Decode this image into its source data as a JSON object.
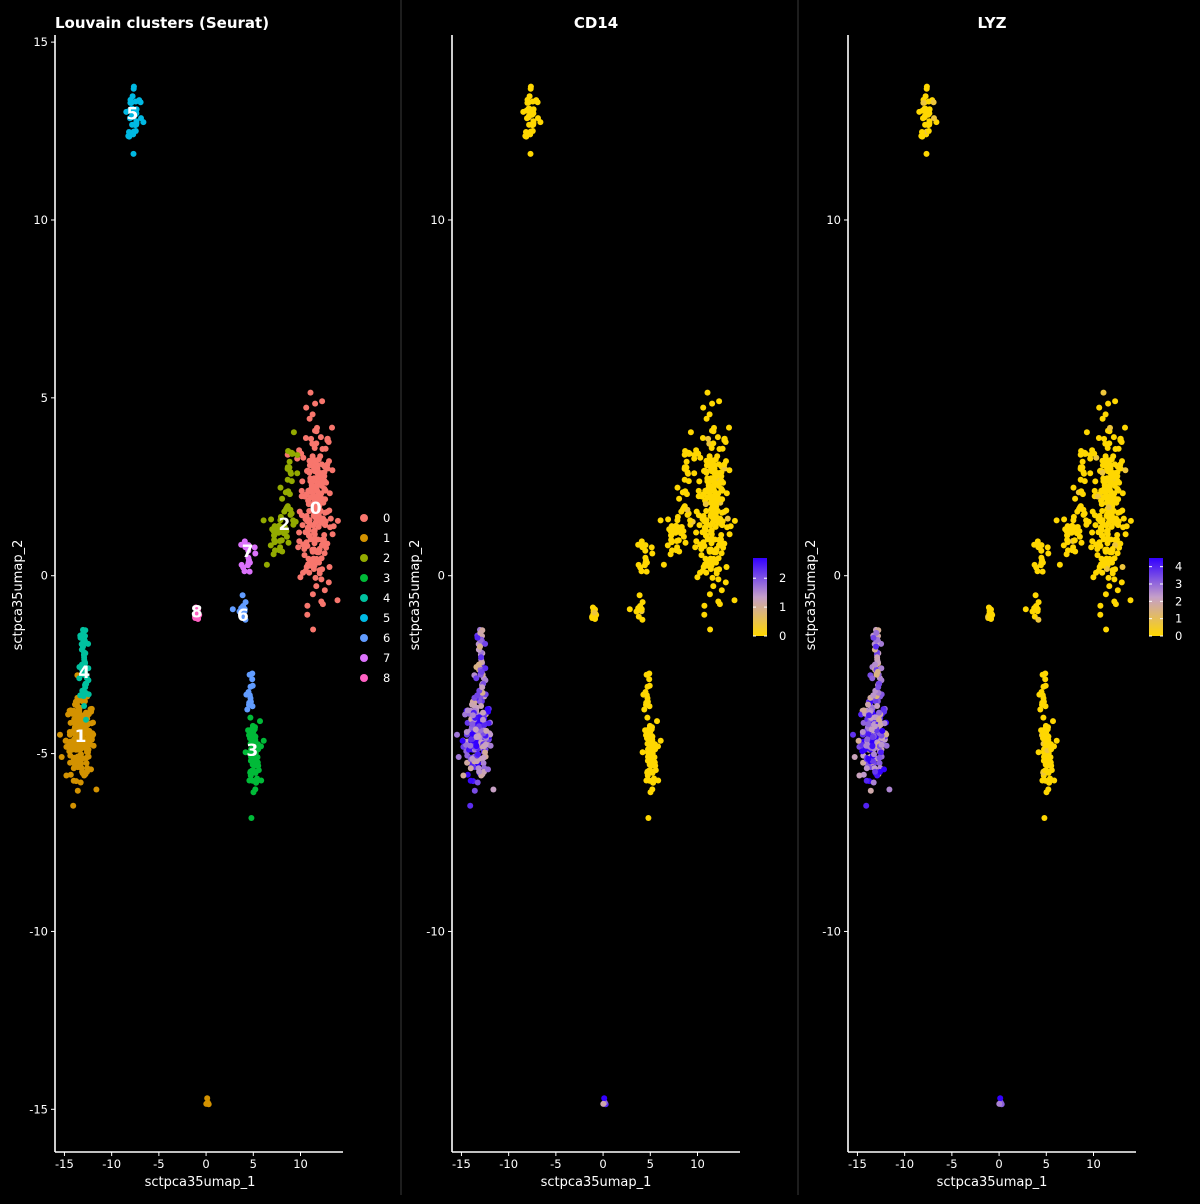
{
  "chart_data": [
    {
      "type": "scatter",
      "title": "Louvain clusters (Seurat)",
      "xlabel": "sctpca35umap_1",
      "ylabel": "sctpca35umap_2",
      "xlim": [
        -16,
        14.5
      ],
      "ylim": [
        -16.2,
        15.2
      ],
      "xticks": [
        -15,
        -10,
        -5,
        0,
        5,
        10
      ],
      "yticks": [
        -15,
        -10,
        -5,
        0,
        5,
        10,
        15
      ],
      "legend_position": "right",
      "legend": [
        "0",
        "1",
        "2",
        "3",
        "4",
        "5",
        "6",
        "7",
        "8"
      ],
      "palette": [
        "#F8766D",
        "#D39200",
        "#93AA00",
        "#00BA38",
        "#00C19F",
        "#00B9E3",
        "#619CFF",
        "#DB72FB",
        "#FF61C3"
      ],
      "clusters": [
        {
          "name": "0",
          "color": "#F8766D",
          "label": [
            11.6,
            1.9
          ],
          "regions": [
            {
              "cx": 11.6,
              "cy": 1.9,
              "sx": 0.85,
              "sy": 1.3,
              "n": 240
            }
          ]
        },
        {
          "name": "1",
          "color": "#D39200",
          "label": [
            -13.3,
            -4.5
          ],
          "regions": [
            {
              "cx": -13.3,
              "cy": -4.6,
              "sx": 0.75,
              "sy": 0.55,
              "n": 200
            },
            {
              "cx": 0.2,
              "cy": -14.75,
              "sx": 0.08,
              "sy": 0.1,
              "n": 4
            }
          ]
        },
        {
          "name": "2",
          "color": "#93AA00",
          "label": [
            8.3,
            1.45
          ],
          "regions": [
            {
              "cx": 7.8,
              "cy": 1.2,
              "sx": 0.6,
              "sy": 0.35,
              "n": 35
            },
            {
              "cx": 9.0,
              "cy": 2.6,
              "sx": 0.5,
              "sy": 0.6,
              "n": 30
            }
          ]
        },
        {
          "name": "3",
          "color": "#00BA38",
          "label": [
            4.9,
            -4.9
          ],
          "regions": [
            {
              "cx": 5.0,
              "cy": -5.0,
              "sx": 0.35,
              "sy": 0.45,
              "n": 80
            }
          ]
        },
        {
          "name": "4",
          "color": "#00C19F",
          "label": [
            -12.9,
            -2.7
          ],
          "regions": [
            {
              "cx": -12.9,
              "cy": -2.6,
              "sx": 0.25,
              "sy": 0.8,
              "n": 50
            }
          ]
        },
        {
          "name": "5",
          "color": "#00B9E3",
          "label": [
            -7.8,
            13.0
          ],
          "regions": [
            {
              "cx": -7.6,
              "cy": 13.0,
              "sx": 0.45,
              "sy": 0.4,
              "n": 40
            }
          ]
        },
        {
          "name": "6",
          "color": "#619CFF",
          "label": [
            3.9,
            -1.1
          ],
          "regions": [
            {
              "cx": 3.7,
              "cy": -1.0,
              "sx": 0.3,
              "sy": 0.25,
              "n": 12
            },
            {
              "cx": 4.7,
              "cy": -3.1,
              "sx": 0.2,
              "sy": 0.4,
              "n": 14
            }
          ]
        },
        {
          "name": "7",
          "color": "#DB72FB",
          "label": [
            4.4,
            0.7
          ],
          "regions": [
            {
              "cx": 4.5,
              "cy": 0.6,
              "sx": 0.3,
              "sy": 0.25,
              "n": 18
            }
          ]
        },
        {
          "name": "8",
          "color": "#FF61C3",
          "label": [
            -1.0,
            -1.0
          ],
          "regions": [
            {
              "cx": -1.0,
              "cy": -1.05,
              "sx": 0.15,
              "sy": 0.12,
              "n": 16
            }
          ]
        }
      ]
    },
    {
      "type": "scatter",
      "title": "CD14",
      "xlabel": "sctpca35umap_1",
      "ylabel": "sctpca35umap_2",
      "xlim": [
        -16,
        14.5
      ],
      "ylim": [
        -16.2,
        15.2
      ],
      "xticks": [
        -15,
        -10,
        -5,
        0,
        5,
        10
      ],
      "yticks": [
        -10,
        0,
        10
      ],
      "legend_position": "right",
      "colorbar": {
        "ticks": [
          "2",
          "1",
          "0"
        ],
        "range": [
          0,
          2.7
        ],
        "low": "#FFD700",
        "mid": "#C59FC9",
        "high": "#3300FF"
      },
      "expression": "high in clusters 1 and 4, near zero elsewhere"
    },
    {
      "type": "scatter",
      "title": "LYZ",
      "xlabel": "sctpca35umap_1",
      "ylabel": "sctpca35umap_2",
      "xlim": [
        -16,
        14.5
      ],
      "ylim": [
        -16.2,
        15.2
      ],
      "xticks": [
        -15,
        -10,
        -5,
        0,
        5,
        10
      ],
      "yticks": [
        -10,
        0,
        10
      ],
      "legend_position": "right",
      "colorbar": {
        "ticks": [
          "4",
          "3",
          "2",
          "1",
          "0"
        ],
        "range": [
          0,
          4.5
        ],
        "low": "#FFD700",
        "mid": "#C59FC9",
        "high": "#3300FF"
      },
      "expression": "high in clusters 1 and 4, near zero elsewhere"
    }
  ]
}
